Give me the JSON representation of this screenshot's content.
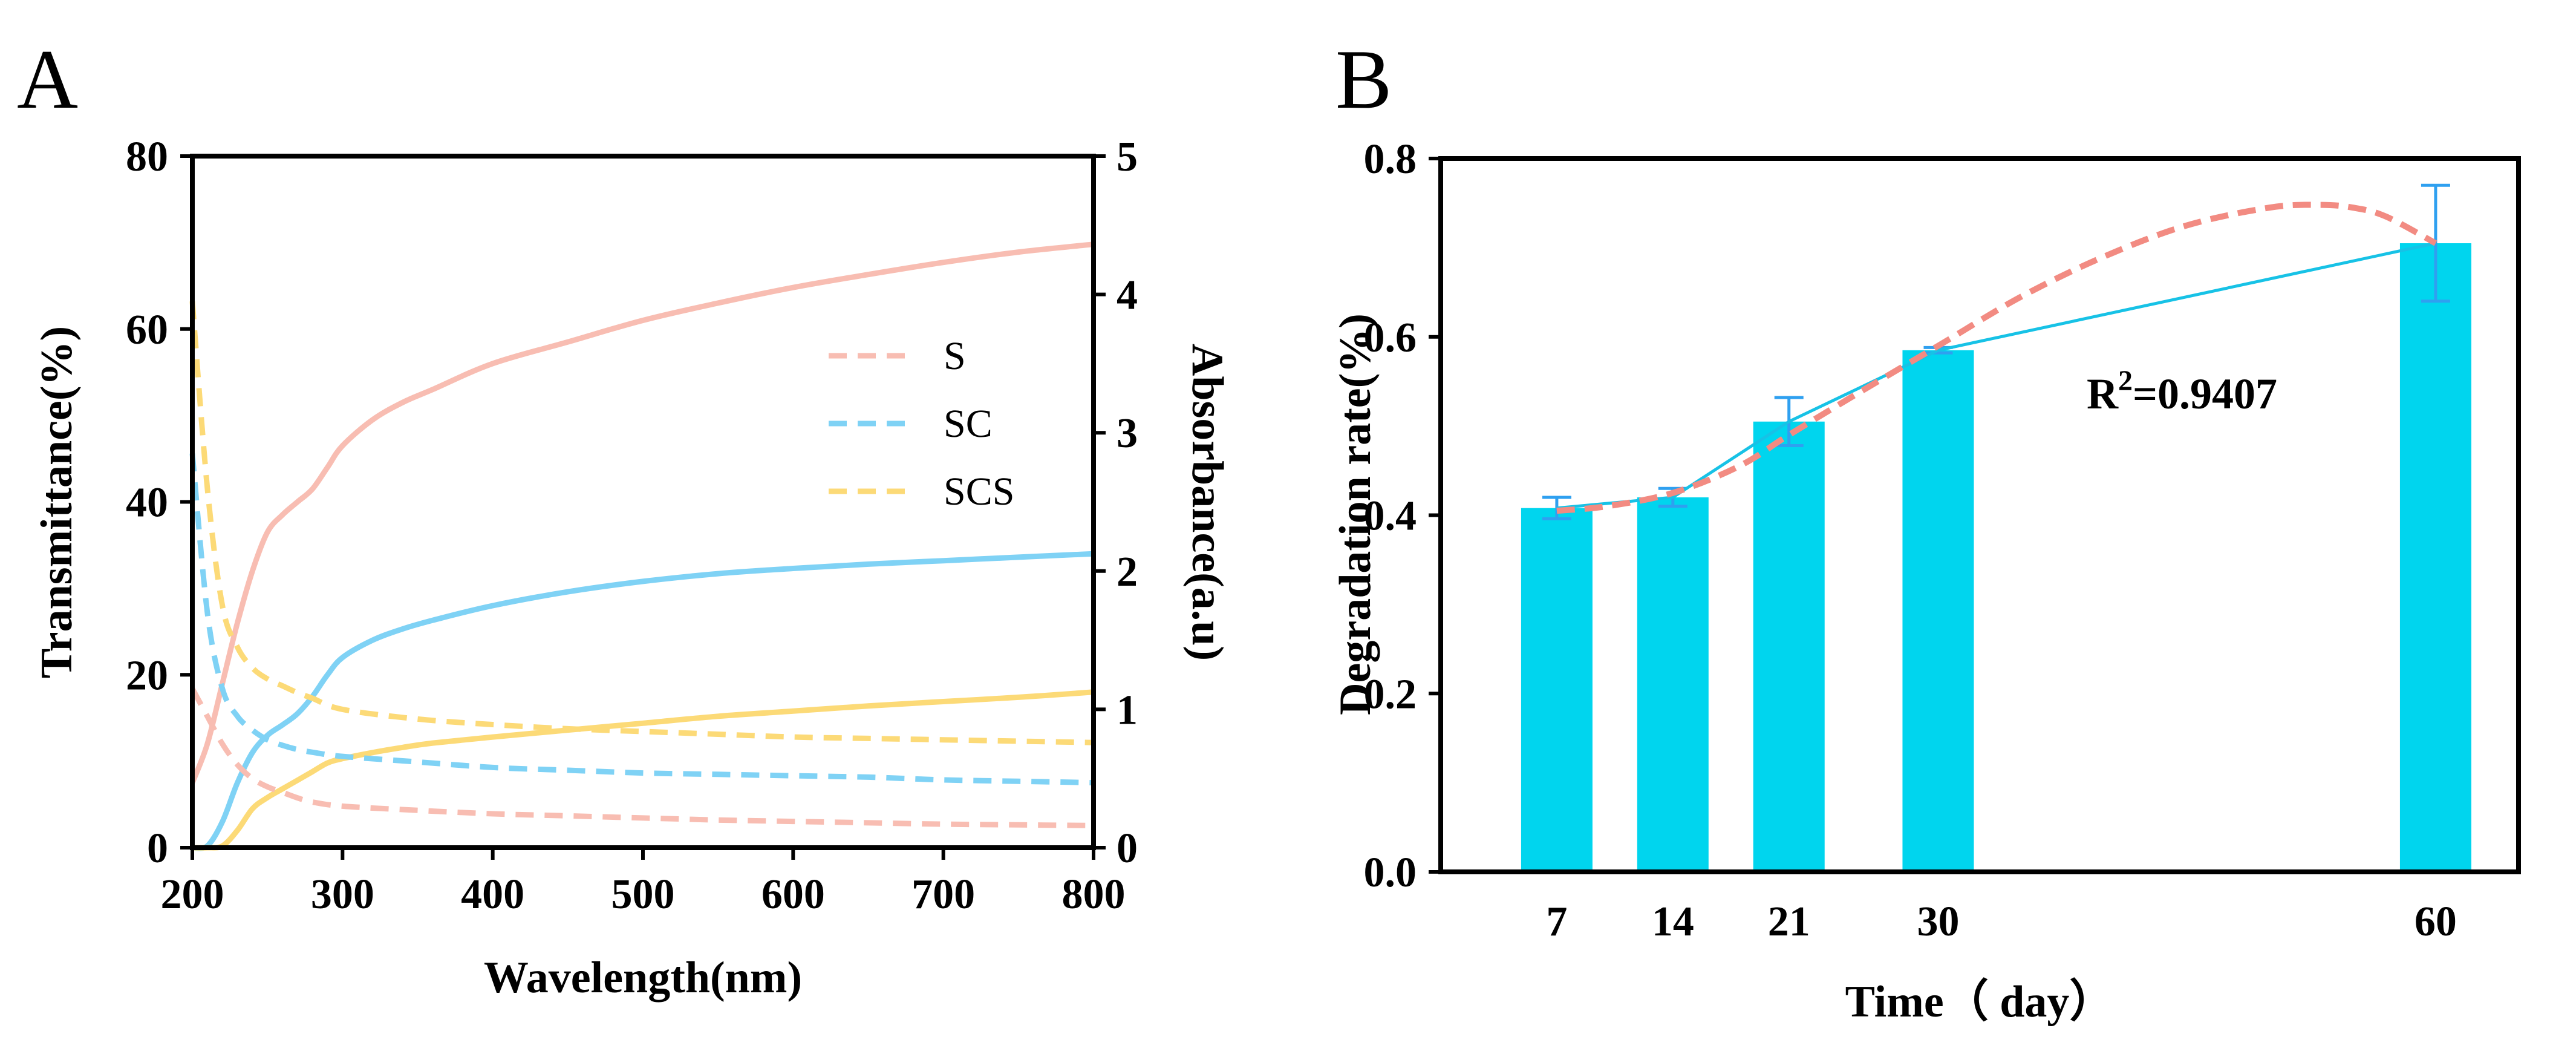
{
  "chart_data": [
    {
      "panel": "A",
      "type": "line",
      "xlabel": "Wavelength(nm)",
      "ylabel": "Transmittance(%)",
      "y2label": "Absorbance(a.u)",
      "xlim": [
        200,
        800
      ],
      "ylim": [
        0,
        80
      ],
      "y2lim": [
        0,
        5
      ],
      "xticks": [
        200,
        300,
        400,
        500,
        600,
        700,
        800
      ],
      "yticks": [
        0,
        20,
        40,
        60,
        80
      ],
      "y2ticks": [
        0,
        1,
        2,
        3,
        4,
        5
      ],
      "legend": {
        "placement": "top-right",
        "entries": [
          "S",
          "SC",
          "SCS"
        ]
      },
      "series": [
        {
          "name": "S",
          "axis": "left",
          "style": "solid",
          "color": "#F8BDB2",
          "x": [
            200,
            210,
            220,
            230,
            240,
            250,
            260,
            270,
            280,
            290,
            300,
            320,
            340,
            360,
            400,
            450,
            500,
            550,
            600,
            650,
            700,
            750,
            800
          ],
          "y": [
            7.5,
            12,
            19,
            26,
            32,
            36.5,
            38.5,
            40,
            41.5,
            44,
            46.5,
            49.5,
            51.5,
            53,
            56,
            58.5,
            61,
            63,
            64.8,
            66.3,
            67.7,
            68.9,
            69.8
          ]
        },
        {
          "name": "SC",
          "axis": "left",
          "style": "solid",
          "color": "#7FD2F5",
          "x": [
            200,
            210,
            220,
            230,
            240,
            250,
            260,
            270,
            280,
            290,
            300,
            320,
            340,
            360,
            400,
            450,
            500,
            550,
            600,
            650,
            700,
            750,
            800
          ],
          "y": [
            0,
            0.2,
            3,
            7.5,
            11,
            13,
            14.2,
            15.5,
            17.5,
            20,
            22,
            24,
            25.3,
            26.3,
            28,
            29.6,
            30.8,
            31.7,
            32.3,
            32.8,
            33.2,
            33.6,
            34
          ]
        },
        {
          "name": "SCS",
          "axis": "left",
          "style": "solid",
          "color": "#FCDA77",
          "x": [
            200,
            210,
            220,
            230,
            240,
            250,
            260,
            270,
            280,
            290,
            300,
            320,
            340,
            360,
            400,
            450,
            500,
            550,
            600,
            650,
            700,
            750,
            800
          ],
          "y": [
            0,
            0,
            0.2,
            2,
            4.5,
            5.8,
            6.8,
            7.8,
            8.8,
            9.8,
            10.3,
            11,
            11.6,
            12.1,
            12.8,
            13.6,
            14.4,
            15.2,
            15.8,
            16.4,
            16.9,
            17.4,
            18
          ]
        },
        {
          "name": "S",
          "axis": "right",
          "style": "dashed",
          "color": "#F8BDB2",
          "x": [
            200,
            210,
            220,
            230,
            240,
            250,
            260,
            270,
            280,
            300,
            350,
            400,
            450,
            500,
            550,
            600,
            650,
            700,
            750,
            800
          ],
          "y": [
            1.15,
            0.95,
            0.75,
            0.6,
            0.5,
            0.44,
            0.4,
            0.36,
            0.33,
            0.3,
            0.27,
            0.245,
            0.23,
            0.215,
            0.2,
            0.19,
            0.18,
            0.17,
            0.165,
            0.16
          ]
        },
        {
          "name": "SC",
          "axis": "right",
          "style": "dashed",
          "color": "#7FD2F5",
          "x": [
            200,
            210,
            220,
            230,
            240,
            250,
            260,
            270,
            280,
            300,
            350,
            400,
            450,
            500,
            550,
            600,
            650,
            700,
            750,
            800
          ],
          "y": [
            2.85,
            1.7,
            1.15,
            0.95,
            0.85,
            0.78,
            0.74,
            0.71,
            0.69,
            0.66,
            0.62,
            0.58,
            0.56,
            0.54,
            0.53,
            0.52,
            0.51,
            0.49,
            0.48,
            0.47
          ]
        },
        {
          "name": "SCS",
          "axis": "right",
          "style": "dashed",
          "color": "#FCDA77",
          "x": [
            200,
            210,
            220,
            230,
            240,
            250,
            260,
            270,
            280,
            300,
            350,
            400,
            450,
            500,
            550,
            600,
            650,
            700,
            750,
            800
          ],
          "y": [
            3.95,
            2.6,
            1.75,
            1.45,
            1.3,
            1.22,
            1.17,
            1.12,
            1.08,
            1.0,
            0.93,
            0.89,
            0.86,
            0.84,
            0.82,
            0.8,
            0.79,
            0.78,
            0.77,
            0.76
          ]
        }
      ]
    },
    {
      "panel": "B",
      "type": "bar",
      "xlabel": "Time（ day）",
      "ylabel": "Degradation rate(%)",
      "ylim": [
        0,
        0.8
      ],
      "yticks": [
        "0.0",
        "0.2",
        "0.4",
        "0.6",
        "0.8"
      ],
      "xlim": [
        0,
        65
      ],
      "categories": [
        "7",
        "14",
        "21",
        "30",
        "60"
      ],
      "x": [
        7,
        14,
        21,
        30,
        60
      ],
      "values": [
        0.408,
        0.42,
        0.505,
        0.585,
        0.705
      ],
      "errors": [
        0.012,
        0.01,
        0.027,
        0.003,
        0.065
      ],
      "bar_color": "#00D5EE",
      "connect_line_color": "#17C2E6",
      "fit": {
        "color": "#F28B82",
        "x": [
          7,
          10,
          14,
          18,
          21,
          25,
          30,
          35,
          40,
          45,
          50,
          53,
          55,
          57,
          60
        ],
        "y": [
          0.405,
          0.41,
          0.425,
          0.455,
          0.49,
          0.535,
          0.59,
          0.645,
          0.69,
          0.725,
          0.745,
          0.748,
          0.745,
          0.735,
          0.705
        ]
      },
      "annotation": {
        "base": "R",
        "sup": "2",
        "rest": "=0.9407"
      }
    }
  ]
}
